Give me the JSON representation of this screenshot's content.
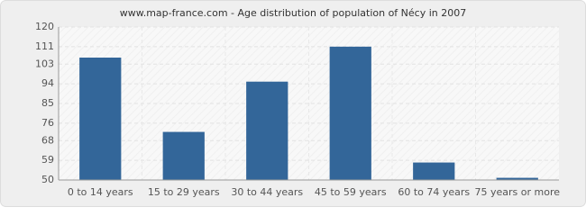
{
  "chart_data": {
    "type": "bar",
    "title": "www.map-france.com - Age distribution of population of Nécy in 2007",
    "categories": [
      "0 to 14 years",
      "15 to 29 years",
      "30 to 44 years",
      "45 to 59 years",
      "60 to 74 years",
      "75 years or more"
    ],
    "values": [
      106,
      72,
      95,
      111,
      58,
      51
    ],
    "color": "#336699",
    "ylim": [
      50,
      120
    ],
    "yticks": [
      50,
      59,
      68,
      76,
      85,
      94,
      103,
      111,
      120
    ],
    "grid": true
  }
}
